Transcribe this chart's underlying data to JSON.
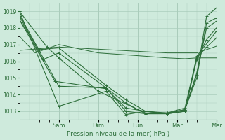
{
  "bg_color": "#ceeadc",
  "grid_color": "#aaccbb",
  "line_color": "#2d6e3a",
  "xlabel": "Pression niveau de la mer( hPa )",
  "ylim": [
    1012.5,
    1019.5
  ],
  "yticks": [
    1013,
    1014,
    1015,
    1016,
    1017,
    1018,
    1019
  ],
  "xlim": [
    0,
    5.0
  ],
  "xtick_positions": [
    1.0,
    2.0,
    3.0,
    4.0,
    5.0
  ],
  "day_labels": [
    "Sam",
    "Dim",
    "Lun",
    "Mar",
    "Mer"
  ],
  "series": [
    {
      "x": [
        0,
        1.0,
        2.2,
        2.7,
        3.2,
        3.75,
        4.2,
        4.5,
        4.75,
        5.0
      ],
      "y": [
        1019.0,
        1013.3,
        1014.2,
        1012.8,
        1013.0,
        1012.85,
        1013.1,
        1015.2,
        1018.7,
        1019.2
      ],
      "marker": "+"
    },
    {
      "x": [
        0,
        1.0,
        2.2,
        2.7,
        3.2,
        3.75,
        4.2,
        4.5,
        4.75,
        5.0
      ],
      "y": [
        1018.8,
        1014.5,
        1014.4,
        1013.0,
        1012.85,
        1012.85,
        1013.1,
        1015.0,
        1018.3,
        1018.6
      ],
      "marker": "+"
    },
    {
      "x": [
        0,
        0.9,
        2.2,
        2.7,
        3.2,
        3.75,
        4.2,
        4.5,
        4.75,
        5.0
      ],
      "y": [
        1018.5,
        1014.8,
        1014.35,
        1013.2,
        1013.0,
        1012.9,
        1013.1,
        1015.3,
        1018.0,
        1018.4
      ],
      "marker": "+"
    },
    {
      "x": [
        0,
        0.7,
        1.0,
        2.0,
        3.2,
        3.75,
        4.2,
        4.5,
        4.75,
        5.0
      ],
      "y": [
        1019.0,
        1016.85,
        1016.2,
        1014.2,
        1012.9,
        1012.9,
        1013.2,
        1016.2,
        1016.85,
        1017.4
      ],
      "marker": "+"
    },
    {
      "x": [
        0,
        0.6,
        1.0,
        2.2,
        2.7,
        3.2,
        3.75,
        4.2,
        4.5,
        4.75,
        5.0
      ],
      "y": [
        1018.7,
        1016.1,
        1016.5,
        1014.4,
        1013.5,
        1012.85,
        1012.85,
        1013.0,
        1016.1,
        1017.3,
        1018.0
      ],
      "marker": "+"
    },
    {
      "x": [
        0,
        0.5,
        1.0,
        2.2,
        2.7,
        3.2,
        3.75,
        4.2,
        4.5,
        5.0
      ],
      "y": [
        1018.5,
        1016.7,
        1016.8,
        1014.55,
        1013.7,
        1013.0,
        1012.85,
        1013.0,
        1016.3,
        1017.8
      ],
      "marker": "+"
    },
    {
      "x": [
        0,
        0.4,
        1.0,
        2.0,
        3.2,
        3.75,
        4.2,
        4.5,
        5.0
      ],
      "y": [
        1017.5,
        1016.5,
        1017.0,
        1016.5,
        1016.3,
        1016.2,
        1016.15,
        1016.2,
        1016.2
      ],
      "marker": null
    },
    {
      "x": [
        0,
        1.0,
        3.75,
        4.5,
        5.0
      ],
      "y": [
        1016.65,
        1016.85,
        1016.5,
        1016.5,
        1016.9
      ],
      "marker": null
    }
  ]
}
